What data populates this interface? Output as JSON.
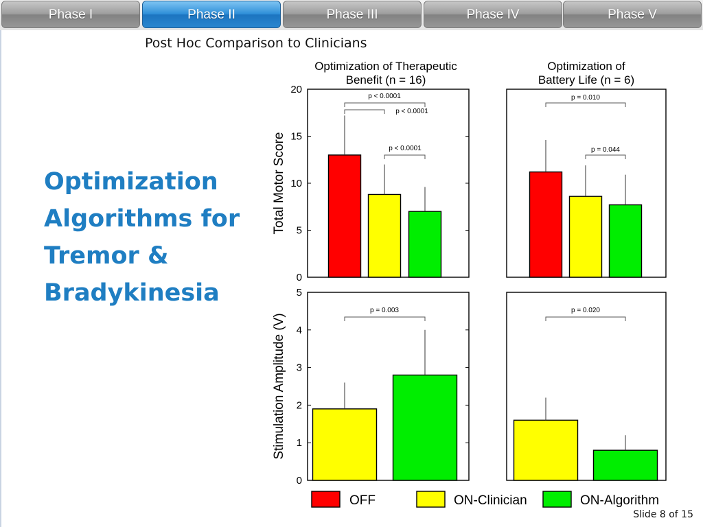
{
  "nav": {
    "tabs": [
      {
        "label": "Phase I",
        "active": false
      },
      {
        "label": "Phase II",
        "active": true
      },
      {
        "label": "Phase III",
        "active": false
      },
      {
        "label": "Phase IV",
        "active": false
      },
      {
        "label": "Phase V",
        "active": false
      }
    ]
  },
  "subtitle": "Post Hoc Comparison to Clinicians",
  "heading": {
    "lines": [
      "Optimization",
      "Algorithms for",
      "Tremor &",
      "Bradykinesia"
    ]
  },
  "footer": {
    "slide_label": "Slide 8 of 15"
  },
  "colors": {
    "accent": "#1f7ec2",
    "active_tab": "#2a86cf",
    "off": "#ff0000",
    "clinician": "#ffff00",
    "algorithm": "#00ee00"
  },
  "chart_data": {
    "type": "bar",
    "legend": [
      "OFF",
      "ON-Clinician",
      "ON-Algorithm"
    ],
    "legend_position": "bottom",
    "column_titles": [
      "Optimization of Therapeutic Benefit (n = 16)",
      "Optimization of Battery Life (n = 6)"
    ],
    "row_ylabels": [
      "Total Motor Score",
      "Stimulation Amplitude (V)"
    ],
    "panels": [
      {
        "column_title": "Optimization of Therapeutic Benefit (n = 16)",
        "ylabel": "Total Motor Score",
        "ylim": [
          0,
          20
        ],
        "yticks": [
          0,
          5,
          10,
          15,
          20
        ],
        "categories": [
          "OFF",
          "ON-Clinician",
          "ON-Algorithm"
        ],
        "values": [
          13.0,
          8.8,
          7.0
        ],
        "errors": [
          4.2,
          3.2,
          2.6
        ],
        "significance": [
          {
            "from": 0,
            "to": 2,
            "label": "p < 0.0001"
          },
          {
            "from": 0,
            "to": 1,
            "label": "p < 0.0001"
          },
          {
            "from": 1,
            "to": 2,
            "label": "p < 0.0001"
          }
        ]
      },
      {
        "column_title": "Optimization of Battery Life (n = 6)",
        "ylim": [
          0,
          20
        ],
        "yticks": [],
        "categories": [
          "OFF",
          "ON-Clinician",
          "ON-Algorithm"
        ],
        "values": [
          11.2,
          8.6,
          7.7
        ],
        "errors": [
          3.4,
          3.3,
          3.2
        ],
        "significance": [
          {
            "from": 0,
            "to": 2,
            "label": "p = 0.010"
          },
          {
            "from": 1,
            "to": 2,
            "label": "p = 0.044"
          }
        ]
      },
      {
        "ylabel": "Stimulation Amplitude (V)",
        "ylim": [
          0,
          5
        ],
        "yticks": [
          0,
          1,
          2,
          3,
          4,
          5
        ],
        "categories": [
          "ON-Clinician",
          "ON-Algorithm"
        ],
        "values": [
          1.9,
          2.8
        ],
        "errors": [
          0.7,
          1.2
        ],
        "significance": [
          {
            "from": 0,
            "to": 1,
            "label": "p = 0.003"
          }
        ]
      },
      {
        "ylim": [
          0,
          5
        ],
        "yticks": [],
        "categories": [
          "ON-Clinician",
          "ON-Algorithm"
        ],
        "values": [
          1.6,
          0.8
        ],
        "errors": [
          0.6,
          0.4
        ],
        "significance": [
          {
            "from": 0,
            "to": 1,
            "label": "p = 0.020"
          }
        ]
      }
    ]
  }
}
